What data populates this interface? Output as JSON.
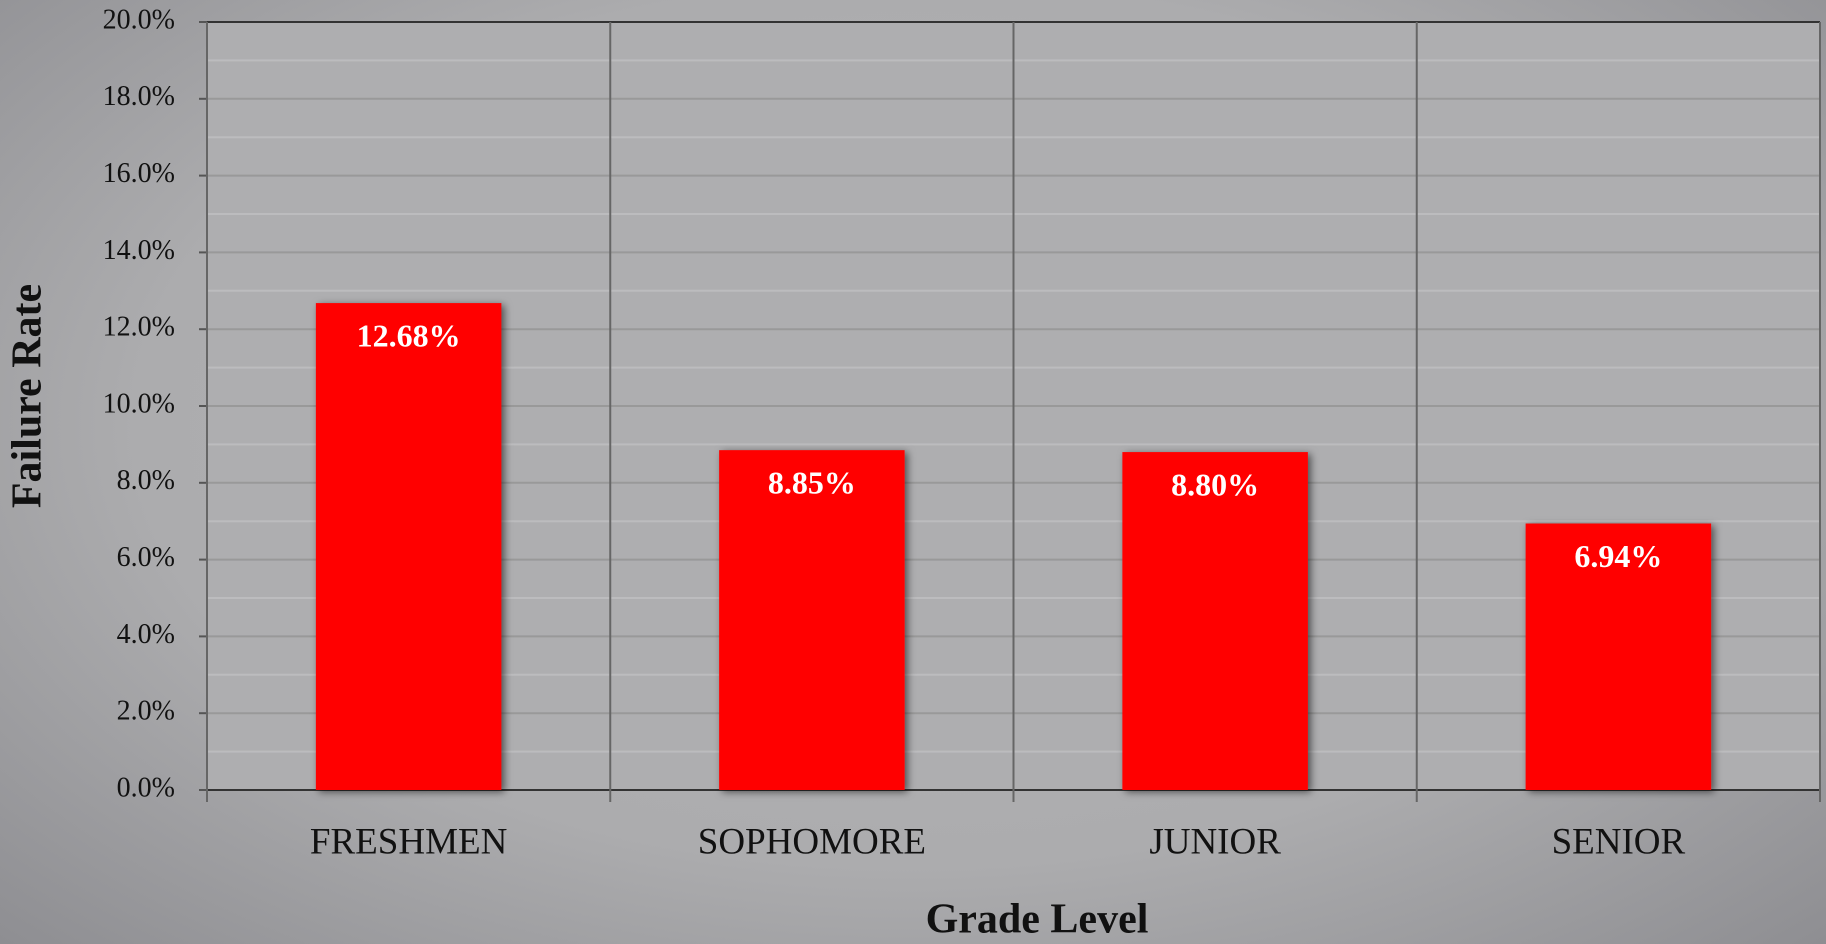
{
  "chart_data": {
    "type": "bar",
    "categories": [
      "FRESHMEN",
      "SOPHOMORE",
      "JUNIOR",
      "SENIOR"
    ],
    "values": [
      12.68,
      8.85,
      8.8,
      6.94
    ],
    "value_labels": [
      "12.68%",
      "8.85%",
      "8.80%",
      "6.94%"
    ],
    "color": "#ff0000",
    "x_label": "Grade Level",
    "y_label": "Failure Rate",
    "ylim": [
      0,
      20
    ],
    "yticks": [
      {
        "value": 0,
        "label": "0.0%"
      },
      {
        "value": 2,
        "label": "2.0%"
      },
      {
        "value": 4,
        "label": "4.0%"
      },
      {
        "value": 6,
        "label": "6.0%"
      },
      {
        "value": 8,
        "label": "8.0%"
      },
      {
        "value": 10,
        "label": "10.0%"
      },
      {
        "value": 12,
        "label": "12.0%"
      },
      {
        "value": 14,
        "label": "14.0%"
      },
      {
        "value": 16,
        "label": "16.0%"
      },
      {
        "value": 18,
        "label": "18.0%"
      },
      {
        "value": 20,
        "label": "20.0%"
      }
    ],
    "grid": true
  }
}
